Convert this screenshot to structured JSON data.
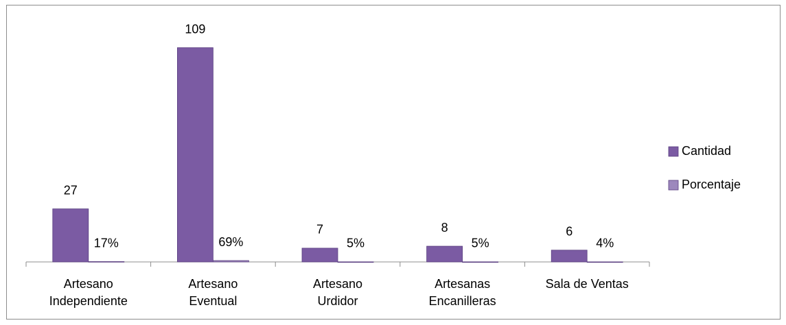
{
  "chart_data": {
    "type": "bar",
    "categories": [
      "Artesano Independiente",
      "Artesano Eventual",
      "Artesano Urdidor",
      "Artesanas Encanilleras",
      "Sala de Ventas"
    ],
    "series": [
      {
        "name": "Cantidad",
        "color": "#7b5ba3",
        "values": [
          27,
          109,
          7,
          8,
          6
        ]
      },
      {
        "name": "Porcentaje",
        "color": "#9d88bd",
        "values": [
          0.17,
          0.69,
          0.05,
          0.05,
          0.04
        ],
        "value_labels": [
          "17%",
          "69%",
          "5%",
          "5%",
          "4%"
        ]
      }
    ],
    "ylim": [
      0,
      120
    ],
    "legend": "right"
  }
}
